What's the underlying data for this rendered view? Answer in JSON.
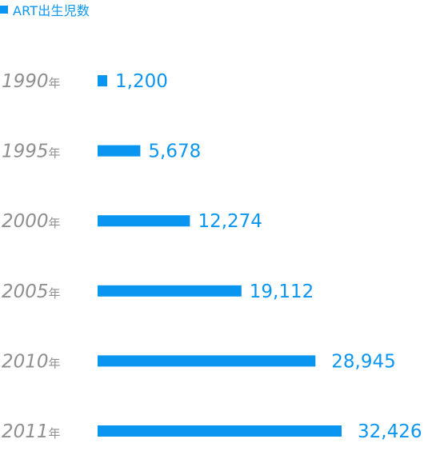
{
  "legend": {
    "label": "ART出生児数"
  },
  "colors": {
    "bar": "#0a96f0",
    "label": "#8f8f8f"
  },
  "chart_data": {
    "type": "bar",
    "orientation": "horizontal",
    "year_suffix": "年",
    "categories": [
      "1990",
      "1995",
      "2000",
      "2005",
      "2010",
      "2011"
    ],
    "values": [
      1200,
      5678,
      12274,
      19112,
      28945,
      32426
    ],
    "value_labels": [
      "1,200",
      "5,678",
      "12,274",
      "19,112",
      "28,945",
      "32,426"
    ],
    "series": [
      {
        "name": "ART出生児数",
        "values": [
          1200,
          5678,
          12274,
          19112,
          28945,
          32426
        ]
      }
    ],
    "xlim": [
      0,
      32426
    ],
    "grid": false,
    "legend_position": "top-left"
  }
}
